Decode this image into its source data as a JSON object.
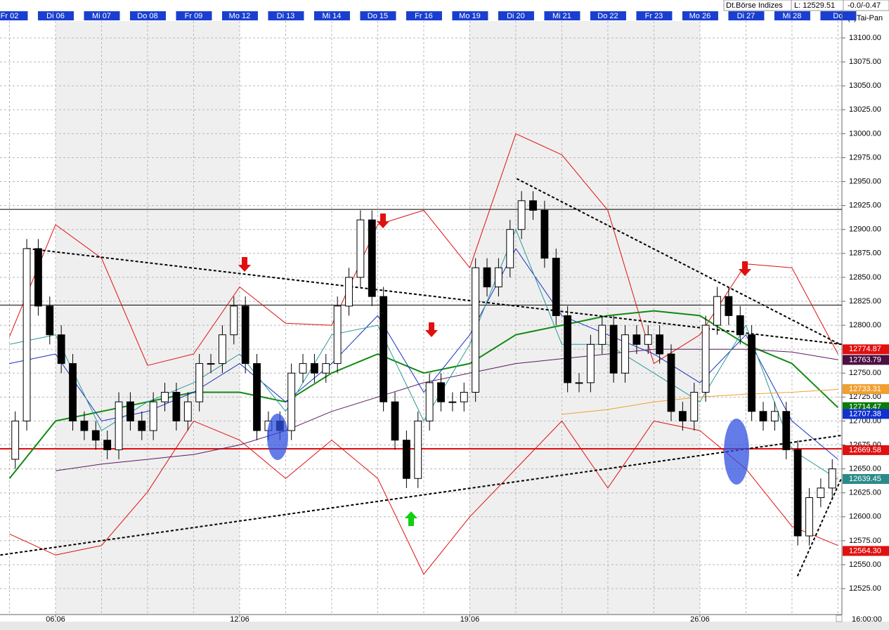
{
  "chart_data": {
    "type": "candlestick",
    "title": "Dt.Börse Indizes",
    "last": "L: 12529.51",
    "change": "-0.0/-0.47",
    "copyright": "(c)Tai-Pan",
    "time_label": "16:00:00",
    "xlim": [
      -0.206,
      18.085
    ],
    "ylim": [
      12497.9,
      13128.6
    ],
    "grid": true,
    "xticks": [
      {
        "value": 0,
        "label": "Fr 02"
      },
      {
        "value": 1,
        "label": "Di 06"
      },
      {
        "value": 2,
        "label": "Mi 07"
      },
      {
        "value": 3,
        "label": "Do 08"
      },
      {
        "value": 4,
        "label": "Fr 09"
      },
      {
        "value": 5,
        "label": "Mo 12"
      },
      {
        "value": 6,
        "label": "Di 13"
      },
      {
        "value": 7,
        "label": "Mi 14"
      },
      {
        "value": 8,
        "label": "Do 15"
      },
      {
        "value": 9,
        "label": "Fr 16"
      },
      {
        "value": 10,
        "label": "Mo 19"
      },
      {
        "value": 11,
        "label": "Di 20"
      },
      {
        "value": 12,
        "label": "Mi 21"
      },
      {
        "value": 13,
        "label": "Do 22"
      },
      {
        "value": 14,
        "label": "Fr 23"
      },
      {
        "value": 15,
        "label": "Mo 26"
      },
      {
        "value": 16,
        "label": "Di 27"
      },
      {
        "value": 17,
        "label": "Mi 28"
      },
      {
        "value": 18,
        "label": "Do"
      }
    ],
    "xticks_bottom": [
      {
        "value": 1,
        "label": "06.06"
      },
      {
        "value": 5,
        "label": "12.06"
      },
      {
        "value": 10,
        "label": "19.06"
      },
      {
        "value": 15,
        "label": "26.06"
      }
    ],
    "yticks": [
      {
        "value": 12525,
        "label": "12525.00"
      },
      {
        "value": 12550,
        "label": "12550.00"
      },
      {
        "value": 12575,
        "label": "12575.00"
      },
      {
        "value": 12600,
        "label": "12600.00"
      },
      {
        "value": 12625,
        "label": "12625.00"
      },
      {
        "value": 12650,
        "label": "12650.00"
      },
      {
        "value": 12675,
        "label": "12675.00"
      },
      {
        "value": 12700,
        "label": "12700.00"
      },
      {
        "value": 12725,
        "label": "12725.00"
      },
      {
        "value": 12750,
        "label": "12750.00"
      },
      {
        "value": 12775,
        "label": "12775.00"
      },
      {
        "value": 12800,
        "label": "12800.00"
      },
      {
        "value": 12825,
        "label": "12825.00"
      },
      {
        "value": 12850,
        "label": "12850.00"
      },
      {
        "value": 12875,
        "label": "12875.00"
      },
      {
        "value": 12900,
        "label": "12900.00"
      },
      {
        "value": 12925,
        "label": "12925.00"
      },
      {
        "value": 12950,
        "label": "12950.00"
      },
      {
        "value": 12975,
        "label": "12975.00"
      },
      {
        "value": 13000,
        "label": "13000.00"
      },
      {
        "value": 13025,
        "label": "13025.00"
      },
      {
        "value": 13050,
        "label": "13050.00"
      },
      {
        "value": 13075,
        "label": "13075.00"
      },
      {
        "value": 13100,
        "label": "13100.00"
      }
    ],
    "shaded_ranges": [
      [
        1,
        5
      ],
      [
        10,
        15
      ]
    ],
    "x": [
      0.125,
      0.375,
      0.625,
      0.875,
      1.125,
      1.375,
      1.625,
      1.875,
      2.125,
      2.375,
      2.625,
      2.875,
      3.125,
      3.375,
      3.625,
      3.875,
      4.125,
      4.375,
      4.625,
      4.875,
      5.125,
      5.375,
      5.625,
      5.875,
      6.125,
      6.375,
      6.625,
      6.875,
      7.125,
      7.375,
      7.625,
      7.875,
      8.125,
      8.375,
      8.625,
      8.875,
      9.125,
      9.375,
      9.625,
      9.875,
      10.125,
      10.375,
      10.625,
      10.875,
      11.125,
      11.375,
      11.625,
      11.875,
      12.125,
      12.375,
      12.625,
      12.875,
      13.125,
      13.375,
      13.625,
      13.875,
      14.125,
      14.375,
      14.625,
      14.875,
      15.125,
      15.375,
      15.625,
      15.875,
      16.125,
      16.375,
      16.625,
      16.875,
      17.125,
      17.375,
      17.625,
      17.875
    ],
    "open": [
      12660,
      12700,
      12880,
      12820,
      12790,
      12760,
      12700,
      12690,
      12680,
      12670,
      12720,
      12700,
      12690,
      12720,
      12730,
      12700,
      12720,
      12760,
      12760,
      12790,
      12820,
      12760,
      12690,
      12700,
      12690,
      12750,
      12760,
      12750,
      12760,
      12820,
      12850,
      12910,
      12830,
      12720,
      12680,
      12640,
      12700,
      12740,
      12720,
      12720,
      12730,
      12860,
      12840,
      12860,
      12900,
      12930,
      12920,
      12870,
      12810,
      12740,
      12740,
      12780,
      12800,
      12750,
      12790,
      12780,
      12790,
      12770,
      12710,
      12700,
      12730,
      12800,
      12830,
      12810,
      12790,
      12710,
      12700,
      12710,
      12670,
      12580,
      12620,
      12630
    ],
    "high": [
      12710,
      12890,
      12890,
      12830,
      12800,
      12770,
      12710,
      12700,
      12690,
      12730,
      12730,
      12710,
      12730,
      12740,
      12740,
      12730,
      12770,
      12770,
      12800,
      12830,
      12830,
      12770,
      12710,
      12710,
      12760,
      12770,
      12770,
      12770,
      12830,
      12860,
      12920,
      12920,
      12840,
      12730,
      12690,
      12710,
      12750,
      12750,
      12730,
      12740,
      12870,
      12870,
      12870,
      12910,
      12940,
      12940,
      12930,
      12880,
      12820,
      12750,
      12790,
      12810,
      12810,
      12800,
      12800,
      12800,
      12800,
      12780,
      12720,
      12740,
      12810,
      12840,
      12840,
      12820,
      12800,
      12720,
      12720,
      12720,
      12680,
      12630,
      12640,
      12660
    ],
    "low": [
      12650,
      12690,
      12810,
      12780,
      12750,
      12690,
      12680,
      12670,
      12660,
      12660,
      12690,
      12680,
      12680,
      12710,
      12690,
      12690,
      12710,
      12750,
      12750,
      12780,
      12750,
      12680,
      12680,
      12680,
      12680,
      12740,
      12740,
      12740,
      12750,
      12810,
      12840,
      12820,
      12710,
      12670,
      12630,
      12630,
      12690,
      12710,
      12710,
      12710,
      12720,
      12830,
      12830,
      12850,
      12890,
      12910,
      12860,
      12800,
      12730,
      12730,
      12730,
      12770,
      12740,
      12740,
      12770,
      12770,
      12760,
      12700,
      12690,
      12690,
      12720,
      12790,
      12800,
      12780,
      12700,
      12690,
      12690,
      12660,
      12570,
      12570,
      12610,
      12620
    ],
    "close": [
      12700,
      12880,
      12820,
      12790,
      12760,
      12700,
      12690,
      12680,
      12670,
      12720,
      12700,
      12690,
      12720,
      12730,
      12700,
      12720,
      12760,
      12760,
      12790,
      12820,
      12760,
      12690,
      12700,
      12690,
      12750,
      12760,
      12750,
      12760,
      12820,
      12850,
      12910,
      12830,
      12720,
      12680,
      12640,
      12700,
      12740,
      12720,
      12720,
      12730,
      12860,
      12840,
      12860,
      12900,
      12930,
      12920,
      12870,
      12810,
      12740,
      12740,
      12780,
      12800,
      12750,
      12790,
      12780,
      12790,
      12770,
      12710,
      12700,
      12730,
      12800,
      12830,
      12810,
      12790,
      12710,
      12700,
      12710,
      12670,
      12580,
      12620,
      12630,
      12650
    ],
    "line_x": [
      0,
      1,
      2,
      3,
      4,
      5,
      6,
      7,
      8,
      9,
      10,
      11,
      12,
      13,
      14,
      15,
      16,
      17,
      18
    ],
    "lines": [
      {
        "color": "#e01010",
        "width": 1,
        "values": [
          12788,
          12905,
          12870,
          12758,
          12770,
          12840,
          12802,
          12800,
          12905,
          12920,
          12860,
          13000,
          12978,
          12920,
          12760,
          12790,
          12864,
          12860,
          12770
        ]
      },
      {
        "color": "#e01010",
        "width": 1,
        "values": [
          12582,
          12560,
          12570,
          12626,
          12700,
          12680,
          12640,
          12680,
          12640,
          12540,
          12600,
          12650,
          12700,
          12630,
          12700,
          12690,
          12650,
          12590,
          12570
        ]
      },
      {
        "color": "#108a10",
        "width": 2,
        "values": [
          12640,
          12700,
          12710,
          12720,
          12730,
          12730,
          12720,
          12750,
          12770,
          12750,
          12760,
          12790,
          12800,
          12810,
          12815,
          12810,
          12780,
          12760,
          12714
        ]
      },
      {
        "color": "#5a1a60",
        "width": 1,
        "values": [
          null,
          12648,
          12655,
          12660,
          12665,
          12675,
          12690,
          12710,
          12725,
          12740,
          12750,
          12760,
          12765,
          12770,
          12775,
          12775,
          12775,
          12772,
          12764
        ]
      },
      {
        "color": "#1830c0",
        "width": 1,
        "values": [
          12760,
          12770,
          12700,
          12710,
          12730,
          12760,
          12720,
          12760,
          12810,
          12730,
          12790,
          12880,
          12810,
          12790,
          12770,
          12740,
          12790,
          12700,
          12660
        ]
      },
      {
        "color": "#2a9a9a",
        "width": 1,
        "values": [
          12780,
          12790,
          12690,
          12720,
          12740,
          12770,
          12710,
          12790,
          12800,
          12700,
          12780,
          12900,
          12780,
          12780,
          12750,
          12720,
          12800,
          12670,
          12639
        ]
      },
      {
        "color": "#f0a030",
        "width": 1,
        "values": [
          null,
          null,
          null,
          null,
          null,
          null,
          null,
          null,
          null,
          null,
          null,
          null,
          12707,
          12712,
          12720,
          12725,
          12728,
          12730,
          12733
        ]
      }
    ],
    "hlines": [
      {
        "value": 12921,
        "color": "#000000",
        "width": 1
      },
      {
        "value": 12821,
        "color": "#000000",
        "width": 1
      },
      {
        "value": 12671,
        "color": "#e01010",
        "width": 2
      }
    ],
    "trendlines": [
      {
        "x": [
          0.4,
          18.08
        ],
        "values": [
          12880,
          12780
        ]
      },
      {
        "x": [
          -0.2,
          18.08
        ],
        "values": [
          12560,
          12685
        ]
      },
      {
        "x": [
          11.02,
          18.04
        ],
        "values": [
          12953,
          12780
        ]
      },
      {
        "x": [
          17.12,
          18.08
        ],
        "values": [
          12538,
          12641
        ]
      }
    ],
    "price_labels": [
      {
        "value": 12774.87,
        "color": "#e01010"
      },
      {
        "value": 12763.79,
        "color": "#4a1040"
      },
      {
        "value": 12733.31,
        "color": "#f0a030"
      },
      {
        "value": 12714.47,
        "color": "#0a7a0a"
      },
      {
        "value": 12707.38,
        "color": "#1030d0"
      },
      {
        "value": 12669.58,
        "color": "#e01010"
      },
      {
        "value": 12639.45,
        "color": "#2a8a8a"
      },
      {
        "value": 12564.3,
        "label": "12564.30",
        "color": "#e01010"
      }
    ]
  }
}
